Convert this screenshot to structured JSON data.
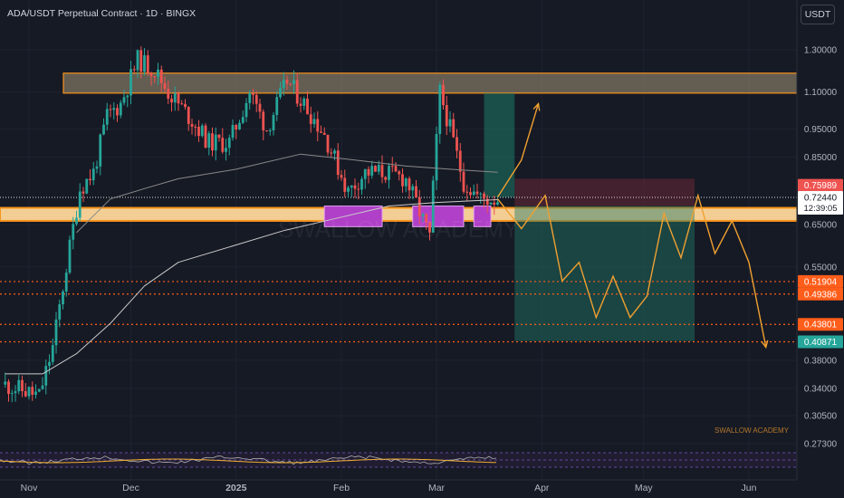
{
  "header": {
    "title": "ADA/USDT Perpetual Contract · 1D · BINGX",
    "unit_button": "USDT"
  },
  "watermark": "SWALLOW ACADEMY",
  "footer_brand": "SWALLOW ACADEMY",
  "colors": {
    "background": "#161a25",
    "up": "#26a69a",
    "down": "#ef5350",
    "orange": "#f7931a",
    "projection": "#f0a030",
    "ma_line": "#c9c9c9",
    "zone_purple": "#b040c8"
  },
  "chart_data": {
    "type": "candlestick",
    "x_labels": [
      "Nov",
      "Dec",
      "2025",
      "Feb",
      "Mar",
      "Apr",
      "May",
      "Jun"
    ],
    "x_label_dates": [
      "2024-11-01",
      "2024-12-01",
      "2025-01-01",
      "2025-02-01",
      "2025-03-01",
      "2025-04-01",
      "2025-05-01",
      "2025-06-01"
    ],
    "y_ticks": [
      "1.30000",
      "1.10000",
      "0.95000",
      "0.85000",
      "0.65000",
      "0.55000",
      "0.38000",
      "0.34000",
      "0.30500",
      "0.27300"
    ],
    "ylim": [
      0.265,
      1.38
    ],
    "y_scale": "log",
    "price_labels": [
      {
        "text": "0.75989",
        "value": 0.75989,
        "color": "#ef5350"
      },
      {
        "text": "0.72440",
        "value": 0.7244,
        "color": "#ffffff",
        "sub": "12:39:05"
      },
      {
        "text": "0.51904",
        "value": 0.51904,
        "color": "#ff5d1a"
      },
      {
        "text": "0.49386",
        "value": 0.49386,
        "color": "#ff5d1a"
      },
      {
        "text": "0.43801",
        "value": 0.43801,
        "color": "#ff5d1a"
      },
      {
        "text": "0.40871",
        "value": 0.40871,
        "color": "#26a69a"
      }
    ],
    "current_price": 0.7244,
    "resistance_zone": [
      1.095,
      1.185
    ],
    "support_zone": [
      0.66,
      0.695
    ],
    "dotted_levels": [
      0.51904,
      0.49386,
      0.43801,
      0.40871
    ],
    "candles_keypoints": [
      {
        "date": "2024-10-25",
        "close": 0.345
      },
      {
        "date": "2024-11-04",
        "close": 0.33
      },
      {
        "date": "2024-11-08",
        "close": 0.4
      },
      {
        "date": "2024-11-12",
        "close": 0.55
      },
      {
        "date": "2024-11-16",
        "close": 0.75
      },
      {
        "date": "2024-11-20",
        "close": 0.8
      },
      {
        "date": "2024-11-24",
        "close": 1.0
      },
      {
        "date": "2024-11-28",
        "close": 1.05
      },
      {
        "date": "2024-12-03",
        "close": 1.25
      },
      {
        "date": "2024-12-08",
        "close": 1.2
      },
      {
        "date": "2024-12-12",
        "close": 1.1
      },
      {
        "date": "2024-12-18",
        "close": 1.0
      },
      {
        "date": "2024-12-24",
        "close": 0.9
      },
      {
        "date": "2024-12-30",
        "close": 0.9
      },
      {
        "date": "2025-01-05",
        "close": 1.1
      },
      {
        "date": "2025-01-10",
        "close": 0.95
      },
      {
        "date": "2025-01-16",
        "close": 1.15
      },
      {
        "date": "2025-01-21",
        "close": 1.05
      },
      {
        "date": "2025-01-27",
        "close": 0.93
      },
      {
        "date": "2025-02-03",
        "close": 0.74
      },
      {
        "date": "2025-02-08",
        "close": 0.8
      },
      {
        "date": "2025-02-14",
        "close": 0.8
      },
      {
        "date": "2025-02-20",
        "close": 0.78
      },
      {
        "date": "2025-02-27",
        "close": 0.62
      },
      {
        "date": "2025-03-02",
        "close": 1.1
      },
      {
        "date": "2025-03-05",
        "close": 0.95
      },
      {
        "date": "2025-03-09",
        "close": 0.77
      },
      {
        "date": "2025-03-14",
        "close": 0.72
      },
      {
        "date": "2025-03-19",
        "close": 0.72
      }
    ],
    "ma200_keypoints": [
      {
        "date": "2024-10-25",
        "value": 0.36
      },
      {
        "date": "2024-11-05",
        "value": 0.36
      },
      {
        "date": "2024-11-15",
        "value": 0.39
      },
      {
        "date": "2024-11-25",
        "value": 0.44
      },
      {
        "date": "2024-12-05",
        "value": 0.51
      },
      {
        "date": "2024-12-15",
        "value": 0.56
      },
      {
        "date": "2025-01-01",
        "value": 0.6
      },
      {
        "date": "2025-01-15",
        "value": 0.635
      },
      {
        "date": "2025-02-01",
        "value": 0.67
      },
      {
        "date": "2025-02-15",
        "value": 0.7
      },
      {
        "date": "2025-03-01",
        "value": 0.71
      },
      {
        "date": "2025-03-19",
        "value": 0.718
      }
    ],
    "ma50_keypoints": [
      {
        "date": "2024-11-15",
        "value": 0.63
      },
      {
        "date": "2024-11-25",
        "value": 0.72
      },
      {
        "date": "2024-12-05",
        "value": 0.75
      },
      {
        "date": "2024-12-15",
        "value": 0.78
      },
      {
        "date": "2025-01-01",
        "value": 0.81
      },
      {
        "date": "2025-01-20",
        "value": 0.86
      },
      {
        "date": "2025-02-05",
        "value": 0.84
      },
      {
        "date": "2025-02-20",
        "value": 0.82
      },
      {
        "date": "2025-03-05",
        "value": 0.81
      },
      {
        "date": "2025-03-19",
        "value": 0.8
      }
    ],
    "projection_bullish": [
      {
        "date": "2025-03-19",
        "value": 0.725
      },
      {
        "date": "2025-03-26",
        "value": 0.84
      },
      {
        "date": "2025-03-31",
        "value": 1.05
      }
    ],
    "projection_bearish": [
      {
        "date": "2025-03-19",
        "value": 0.72
      },
      {
        "date": "2025-03-26",
        "value": 0.64
      },
      {
        "date": "2025-04-02",
        "value": 0.73
      },
      {
        "date": "2025-04-07",
        "value": 0.52
      },
      {
        "date": "2025-04-12",
        "value": 0.56
      },
      {
        "date": "2025-04-17",
        "value": 0.45
      },
      {
        "date": "2025-04-22",
        "value": 0.53
      },
      {
        "date": "2025-04-27",
        "value": 0.45
      },
      {
        "date": "2025-05-02",
        "value": 0.49
      },
      {
        "date": "2025-05-07",
        "value": 0.68
      },
      {
        "date": "2025-05-12",
        "value": 0.57
      },
      {
        "date": "2025-05-17",
        "value": 0.73
      },
      {
        "date": "2025-05-22",
        "value": 0.58
      },
      {
        "date": "2025-05-27",
        "value": 0.66
      },
      {
        "date": "2025-06-01",
        "value": 0.56
      },
      {
        "date": "2025-06-06",
        "value": 0.4
      }
    ],
    "position_long": {
      "start": "2025-03-15",
      "end": "2025-03-24",
      "entry": 0.725,
      "target": 1.095,
      "stop": 0.7
    },
    "position_short": {
      "start": "2025-03-24",
      "end": "2025-05-16",
      "entry": 0.7,
      "target": 0.41,
      "stop": 0.78
    },
    "purple_zones": [
      {
        "start": "2025-01-27",
        "end": "2025-02-13"
      },
      {
        "start": "2025-02-22",
        "end": "2025-03-09"
      },
      {
        "start": "2025-03-12",
        "end": "2025-03-17"
      }
    ]
  }
}
